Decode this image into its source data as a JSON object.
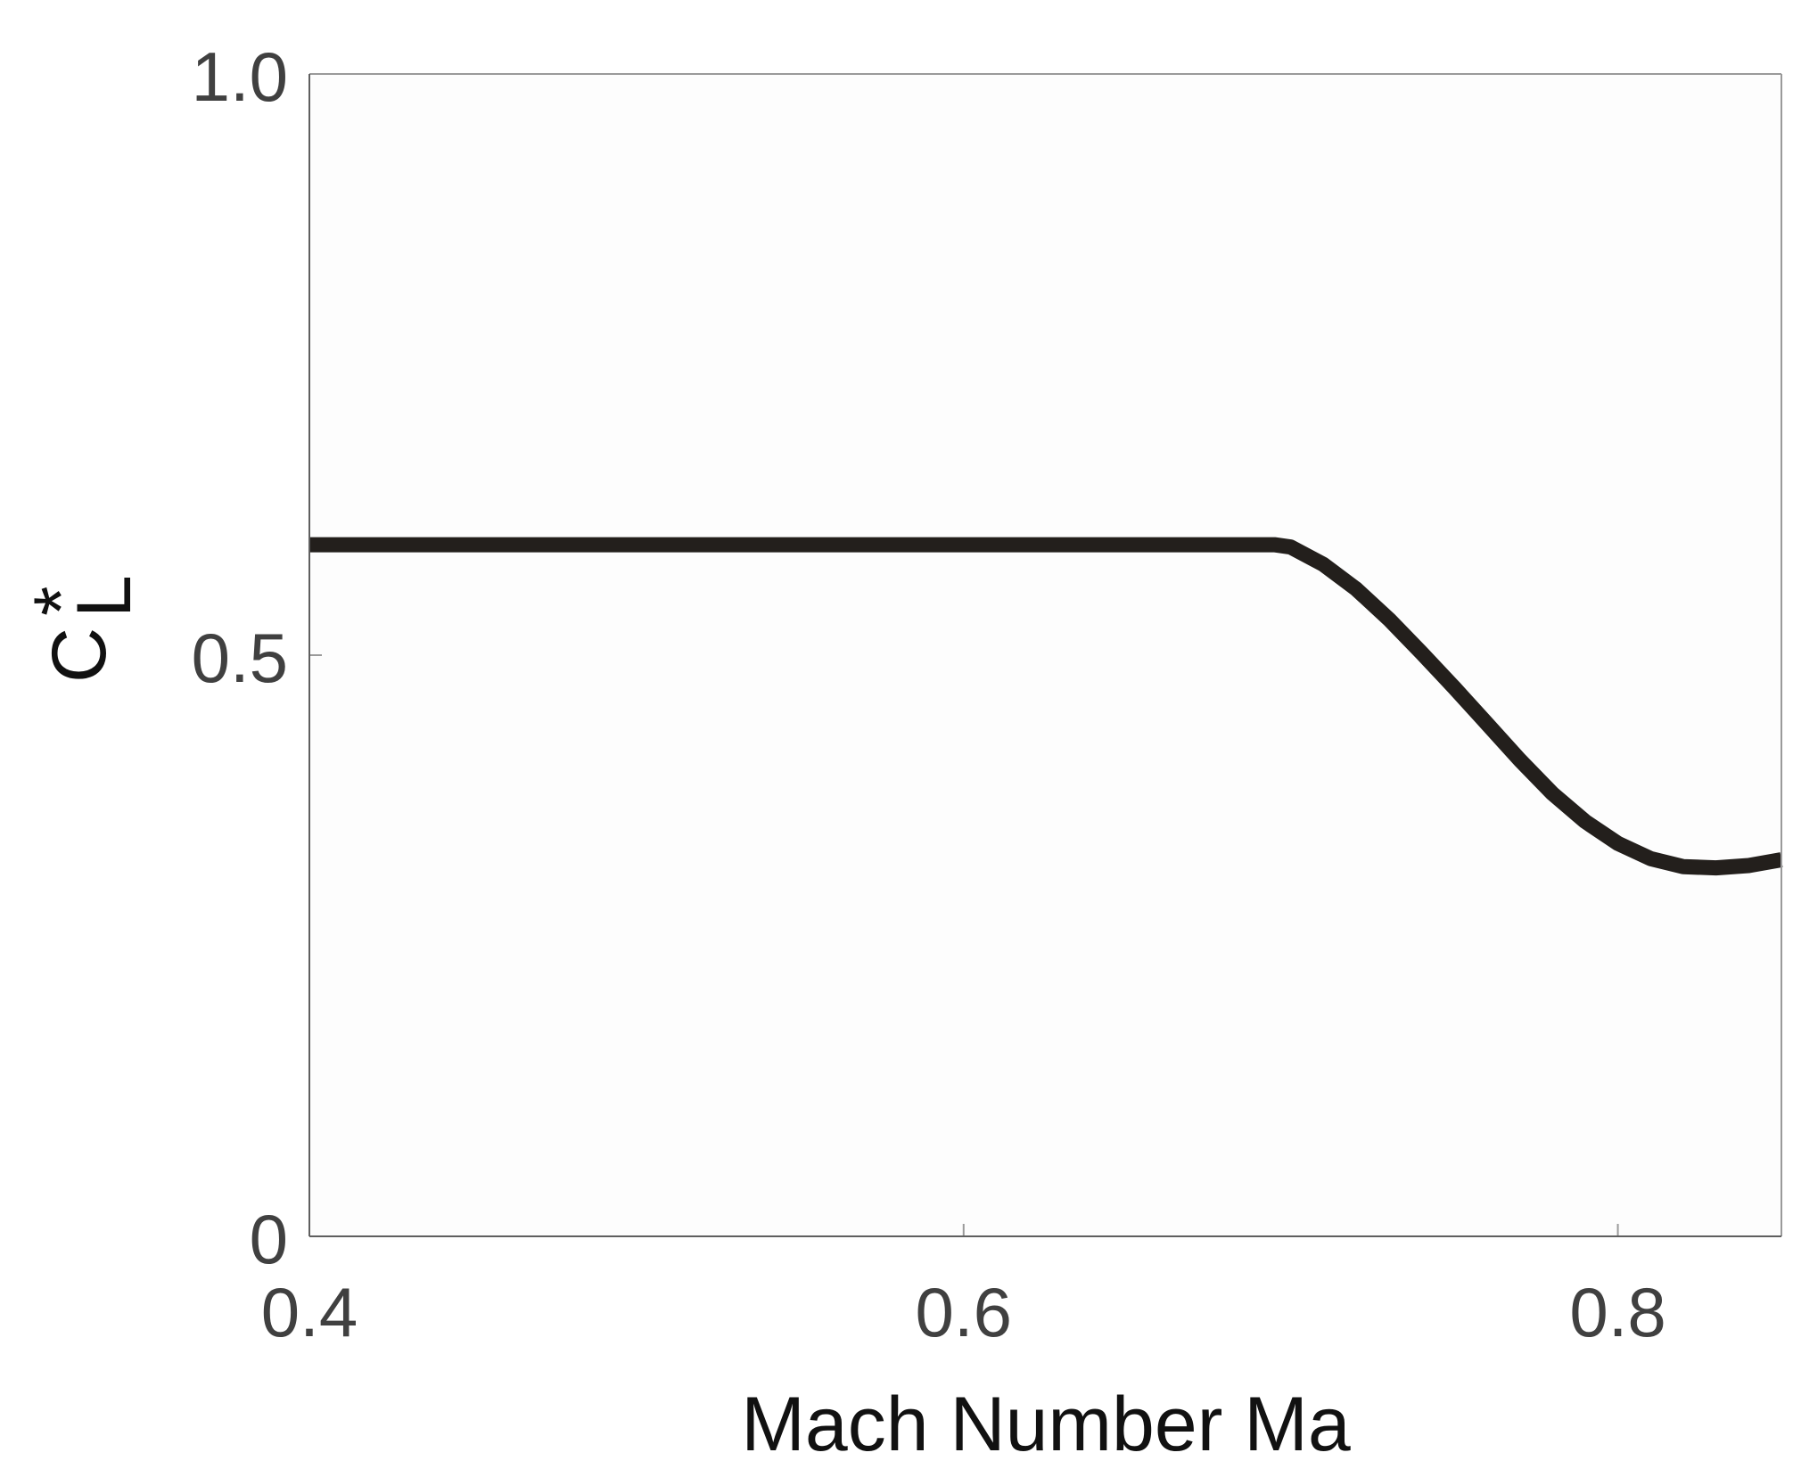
{
  "chart_data": {
    "type": "line",
    "title": "",
    "xlabel": "Mach Number Ma",
    "ylabel": {
      "main": "C",
      "superscript": "*",
      "subscript": "L"
    },
    "xlim": [
      0.4,
      0.85
    ],
    "ylim": [
      0,
      1.0
    ],
    "x_ticks": [
      0.4,
      0.6,
      0.8
    ],
    "x_tick_labels": [
      "0.4",
      "0.6",
      "0.8"
    ],
    "y_ticks": [
      0,
      0.5,
      1.0
    ],
    "y_tick_labels": [
      "0",
      "0.5",
      "1.0"
    ],
    "grid": false,
    "series": [
      {
        "x": [
          0.4,
          0.45,
          0.5,
          0.55,
          0.6,
          0.65,
          0.695,
          0.7,
          0.71,
          0.72,
          0.73,
          0.74,
          0.75,
          0.76,
          0.77,
          0.78,
          0.79,
          0.8,
          0.81,
          0.82,
          0.83,
          0.84,
          0.85
        ],
        "y": [
          0.595,
          0.595,
          0.595,
          0.595,
          0.595,
          0.595,
          0.595,
          0.593,
          0.578,
          0.557,
          0.531,
          0.502,
          0.472,
          0.441,
          0.41,
          0.381,
          0.357,
          0.338,
          0.325,
          0.318,
          0.317,
          0.319,
          0.324
        ],
        "color": "#231f1c"
      }
    ]
  }
}
